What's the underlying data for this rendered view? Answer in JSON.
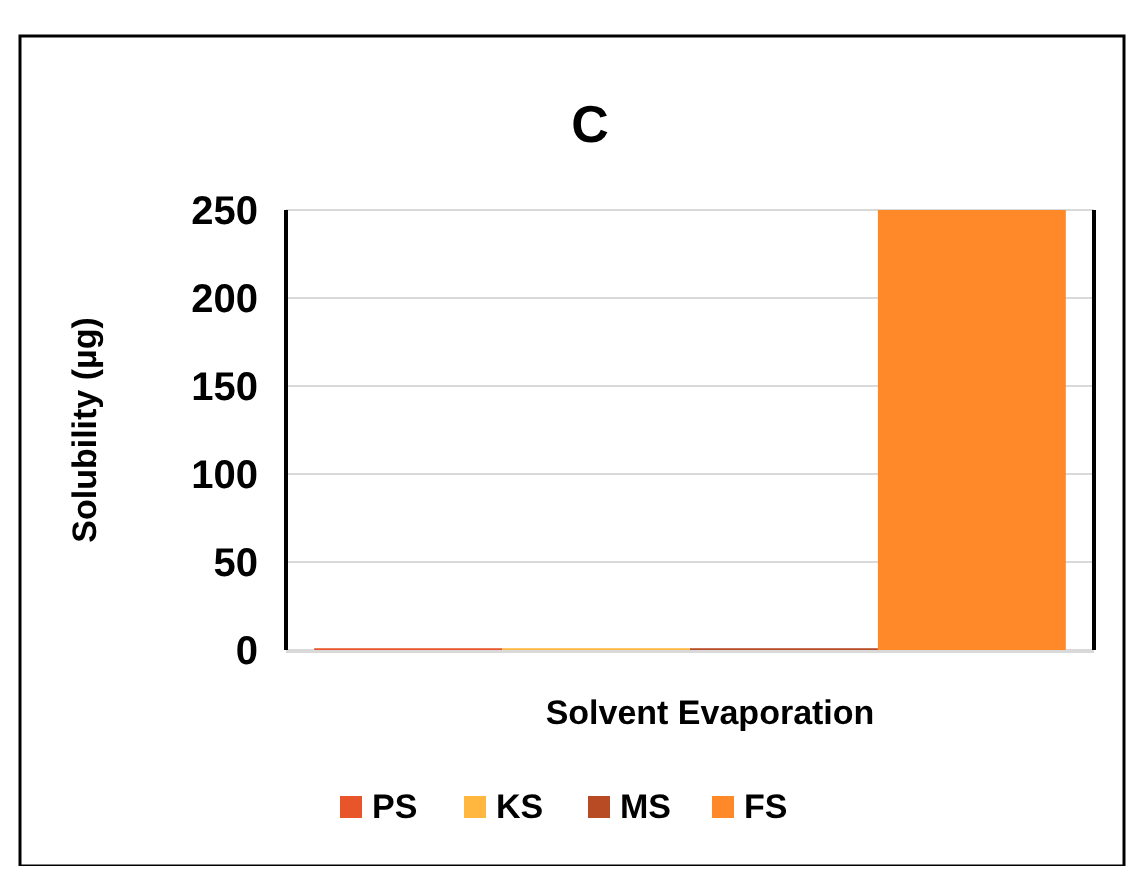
{
  "chart_data": {
    "type": "bar",
    "title": "C",
    "categories": [
      "Solvent Evaporation"
    ],
    "ylabel": "Solubility (µg)",
    "series": [
      {
        "name": "PS",
        "color": "#e8552a",
        "values": [
          1
        ]
      },
      {
        "name": "KS",
        "color": "#ffb740",
        "values": [
          1
        ]
      },
      {
        "name": "MS",
        "color": "#b84a24",
        "values": [
          1
        ]
      },
      {
        "name": "FS",
        "color": "#ff8828",
        "values": [
          250
        ]
      }
    ],
    "ylim": [
      0,
      250
    ],
    "yticks": [
      0,
      50,
      100,
      150,
      200,
      250
    ],
    "grid": "y",
    "legend": "bottom"
  }
}
